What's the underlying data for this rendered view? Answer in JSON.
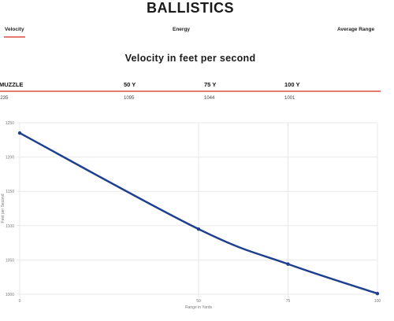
{
  "header": {
    "title": "BALLISTICS"
  },
  "tabs": [
    {
      "label": "Velocity",
      "active": true
    },
    {
      "label": "Energy",
      "active": false
    },
    {
      "label": "Average Range",
      "active": false
    }
  ],
  "section_title": "Velocity in feet per second",
  "table": {
    "columns": [
      "MUZZLE",
      "50 Y",
      "75 Y",
      "100 Y"
    ],
    "rows": [
      [
        "1235",
        "1095",
        "1044",
        "1001"
      ]
    ]
  },
  "colors": {
    "accent": "#e6796f",
    "series": "#1f3f8f",
    "grid": "#e8e8e8"
  },
  "chart_data": {
    "type": "line",
    "xlabel": "Range in Yards",
    "ylabel": "Feet per Second",
    "x": [
      0,
      50,
      75,
      100
    ],
    "series": [
      {
        "values": [
          1235,
          1095,
          1044,
          1001
        ]
      }
    ],
    "xlim": [
      0,
      100
    ],
    "ylim": [
      1000,
      1250
    ],
    "xticks": [
      0,
      50,
      75,
      100
    ],
    "yticks": [
      1000,
      1050,
      1100,
      1150,
      1200,
      1250
    ],
    "grid": true
  }
}
